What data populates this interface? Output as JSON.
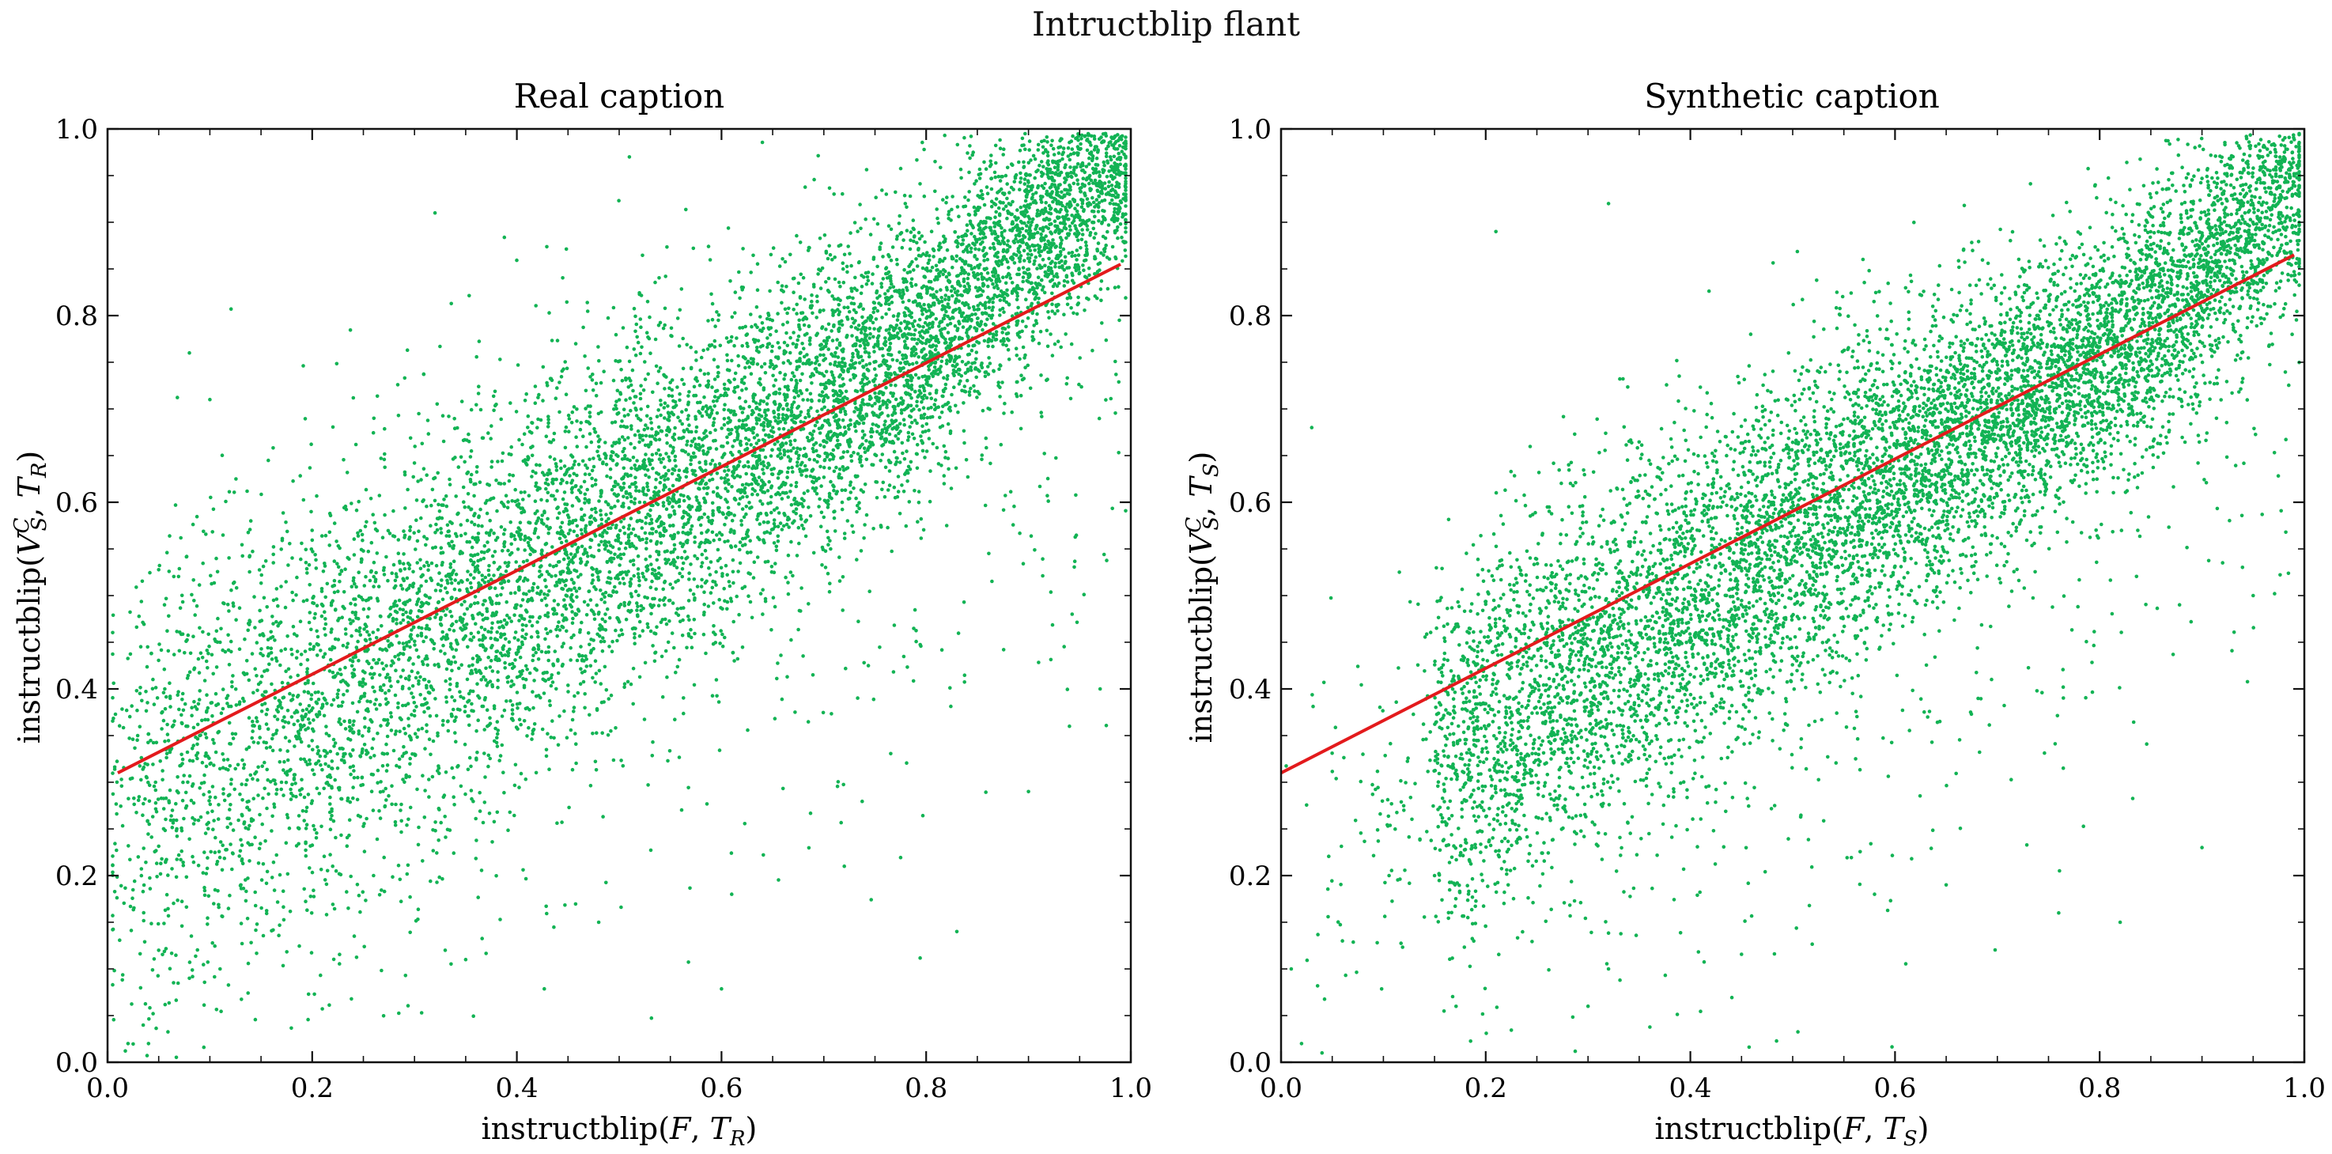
{
  "suptitle": "Intructblip flant",
  "chart_data": [
    {
      "type": "scatter",
      "title": "Real caption",
      "xlabel": "instructblip(F, T_R)",
      "ylabel": "instructblip(V_S^C, T_R)",
      "xlim": [
        0.0,
        1.0
      ],
      "ylim": [
        0.0,
        1.0
      ],
      "xticks": [
        "0.0",
        "0.2",
        "0.4",
        "0.6",
        "0.8",
        "1.0"
      ],
      "yticks": [
        "0.0",
        "0.2",
        "0.4",
        "0.6",
        "0.8",
        "1.0"
      ],
      "grid": false,
      "point_color": "#12b354",
      "line_color": "#e31a1c",
      "trend": {
        "x": [
          0.01,
          0.99
        ],
        "y": [
          0.31,
          0.855
        ]
      },
      "sample_points": [
        [
          0.02,
          0.02
        ],
        [
          0.04,
          0.02
        ],
        [
          0.05,
          0.12
        ],
        [
          0.08,
          0.09
        ],
        [
          0.11,
          0.1
        ],
        [
          0.03,
          0.22
        ],
        [
          0.06,
          0.28
        ],
        [
          0.09,
          0.35
        ],
        [
          0.11,
          0.45
        ],
        [
          0.08,
          0.76
        ],
        [
          0.1,
          0.71
        ],
        [
          0.14,
          0.58
        ],
        [
          0.17,
          0.3
        ],
        [
          0.18,
          0.37
        ],
        [
          0.2,
          0.28
        ],
        [
          0.22,
          0.21
        ],
        [
          0.26,
          0.2
        ],
        [
          0.3,
          0.33
        ],
        [
          0.31,
          0.41
        ],
        [
          0.33,
          0.12
        ],
        [
          0.35,
          0.11
        ],
        [
          0.32,
          0.91
        ],
        [
          0.38,
          0.44
        ],
        [
          0.4,
          0.49
        ],
        [
          0.42,
          0.58
        ],
        [
          0.44,
          0.43
        ],
        [
          0.46,
          0.52
        ],
        [
          0.5,
          0.55
        ],
        [
          0.52,
          0.6
        ],
        [
          0.51,
          0.97
        ],
        [
          0.48,
          0.15
        ],
        [
          0.58,
          0.62
        ],
        [
          0.6,
          0.66
        ],
        [
          0.62,
          0.72
        ],
        [
          0.61,
          0.18
        ],
        [
          0.66,
          0.69
        ],
        [
          0.7,
          0.71
        ],
        [
          0.72,
          0.21
        ],
        [
          0.74,
          0.78
        ],
        [
          0.78,
          0.8
        ],
        [
          0.82,
          0.83
        ],
        [
          0.83,
          0.14
        ],
        [
          0.86,
          0.86
        ],
        [
          0.88,
          0.88
        ],
        [
          0.9,
          0.9
        ],
        [
          0.92,
          0.91
        ],
        [
          0.94,
          0.93
        ],
        [
          0.96,
          0.95
        ],
        [
          0.98,
          0.97
        ],
        [
          0.94,
          0.36
        ],
        [
          0.97,
          0.4
        ],
        [
          0.9,
          0.29
        ]
      ]
    },
    {
      "type": "scatter",
      "title": "Synthetic caption",
      "xlabel": "instructblip(F, T_S)",
      "ylabel": "instructblip(V_S^C, T_S)",
      "xlim": [
        0.0,
        1.0
      ],
      "ylim": [
        0.0,
        1.0
      ],
      "xticks": [
        "0.0",
        "0.2",
        "0.4",
        "0.6",
        "0.8",
        "1.0"
      ],
      "yticks": [
        "0.0",
        "0.2",
        "0.4",
        "0.6",
        "0.8",
        "1.0"
      ],
      "grid": false,
      "point_color": "#12b354",
      "line_color": "#e31a1c",
      "trend": {
        "x": [
          0.0,
          0.99
        ],
        "y": [
          0.31,
          0.865
        ]
      },
      "sample_points": [
        [
          0.01,
          0.1
        ],
        [
          0.02,
          0.02
        ],
        [
          0.04,
          0.01
        ],
        [
          0.03,
          0.68
        ],
        [
          0.06,
          0.13
        ],
        [
          0.08,
          0.33
        ],
        [
          0.12,
          0.27
        ],
        [
          0.15,
          0.2
        ],
        [
          0.17,
          0.19
        ],
        [
          0.19,
          0.23
        ],
        [
          0.21,
          0.89
        ],
        [
          0.24,
          0.31
        ],
        [
          0.28,
          0.39
        ],
        [
          0.3,
          0.06
        ],
        [
          0.32,
          0.92
        ],
        [
          0.32,
          0.1
        ],
        [
          0.35,
          0.46
        ],
        [
          0.38,
          0.49
        ],
        [
          0.4,
          0.45
        ],
        [
          0.42,
          0.52
        ],
        [
          0.45,
          0.55
        ],
        [
          0.48,
          0.57
        ],
        [
          0.5,
          0.6
        ],
        [
          0.53,
          0.62
        ],
        [
          0.56,
          0.66
        ],
        [
          0.58,
          0.18
        ],
        [
          0.6,
          0.68
        ],
        [
          0.62,
          0.72
        ],
        [
          0.65,
          0.19
        ],
        [
          0.68,
          0.75
        ],
        [
          0.7,
          0.77
        ],
        [
          0.74,
          0.8
        ],
        [
          0.76,
          0.16
        ],
        [
          0.78,
          0.81
        ],
        [
          0.8,
          0.83
        ],
        [
          0.82,
          0.15
        ],
        [
          0.84,
          0.86
        ],
        [
          0.86,
          0.88
        ],
        [
          0.88,
          0.9
        ],
        [
          0.9,
          0.23
        ],
        [
          0.92,
          0.93
        ],
        [
          0.94,
          0.94
        ],
        [
          0.96,
          0.96
        ],
        [
          0.98,
          0.97
        ],
        [
          0.95,
          0.5
        ]
      ]
    }
  ]
}
